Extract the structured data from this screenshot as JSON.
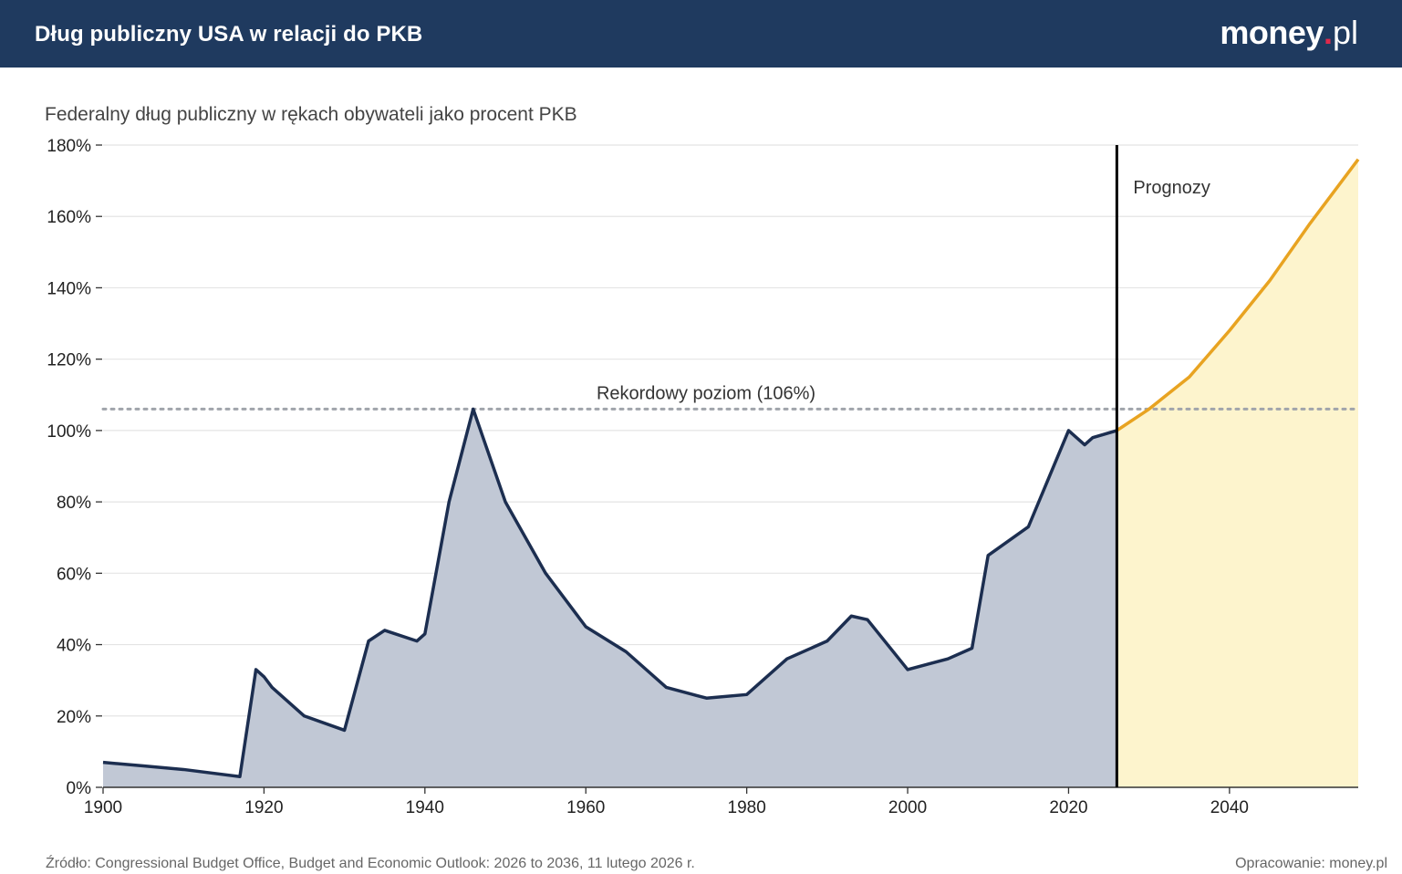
{
  "header": {
    "title": "Dług publiczny USA w relacji do PKB",
    "logo_main": "money",
    "logo_dot": ".",
    "logo_tld": "pl"
  },
  "subtitle": "Federalny dług publiczny w rękach obywateli jako procent PKB",
  "footer": {
    "source": "Źródło: Congressional Budget Office, Budget and Economic Outlook: 2026 to 2036, 11 lutego 2026 r.",
    "credit": "Opracowanie: money.pl"
  },
  "colors": {
    "header_bg": "#1f3a5f",
    "historical_line": "#1c2e50",
    "historical_fill": "#c1c8d5",
    "forecast_line": "#e8a321",
    "forecast_fill": "#fdf4cd",
    "divider": "#000000",
    "record_line": "#a0a4ab"
  },
  "chart_data": {
    "type": "area",
    "title": "Federalny dług publiczny w rękach obywateli jako procent PKB",
    "xlabel": "",
    "ylabel": "",
    "xlim": [
      1900,
      2056
    ],
    "ylim": [
      0,
      180
    ],
    "x_ticks": [
      "1900",
      "1920",
      "1940",
      "1960",
      "1980",
      "2000",
      "2020",
      "2040"
    ],
    "y_ticks": [
      "0%",
      "20%",
      "40%",
      "60%",
      "80%",
      "100%",
      "120%",
      "140%",
      "160%",
      "180%"
    ],
    "grid": true,
    "series": [
      {
        "name": "",
        "kind": "historical",
        "points": [
          [
            1900,
            7
          ],
          [
            1905,
            6
          ],
          [
            1910,
            5
          ],
          [
            1917,
            3
          ],
          [
            1919,
            33
          ],
          [
            1920,
            31
          ],
          [
            1921,
            28
          ],
          [
            1925,
            20
          ],
          [
            1930,
            16
          ],
          [
            1933,
            41
          ],
          [
            1935,
            44
          ],
          [
            1939,
            41
          ],
          [
            1940,
            43
          ],
          [
            1943,
            80
          ],
          [
            1946,
            106
          ],
          [
            1950,
            80
          ],
          [
            1955,
            60
          ],
          [
            1960,
            45
          ],
          [
            1965,
            38
          ],
          [
            1970,
            28
          ],
          [
            1975,
            25
          ],
          [
            1980,
            26
          ],
          [
            1985,
            36
          ],
          [
            1990,
            41
          ],
          [
            1993,
            48
          ],
          [
            1995,
            47
          ],
          [
            2000,
            33
          ],
          [
            2005,
            36
          ],
          [
            2008,
            39
          ],
          [
            2010,
            65
          ],
          [
            2015,
            73
          ],
          [
            2020,
            100
          ],
          [
            2022,
            96
          ],
          [
            2023,
            98
          ],
          [
            2026,
            100
          ]
        ]
      },
      {
        "name": "",
        "kind": "forecast",
        "points": [
          [
            2026,
            100
          ],
          [
            2030,
            106
          ],
          [
            2035,
            115
          ],
          [
            2040,
            128
          ],
          [
            2045,
            142
          ],
          [
            2050,
            158
          ],
          [
            2056,
            176
          ]
        ]
      }
    ],
    "annotations": {
      "forecast_start_year": 2026,
      "forecast_label": "Prognozy",
      "record_value": 106,
      "record_label": "Rekordowy poziom (106%)"
    }
  }
}
